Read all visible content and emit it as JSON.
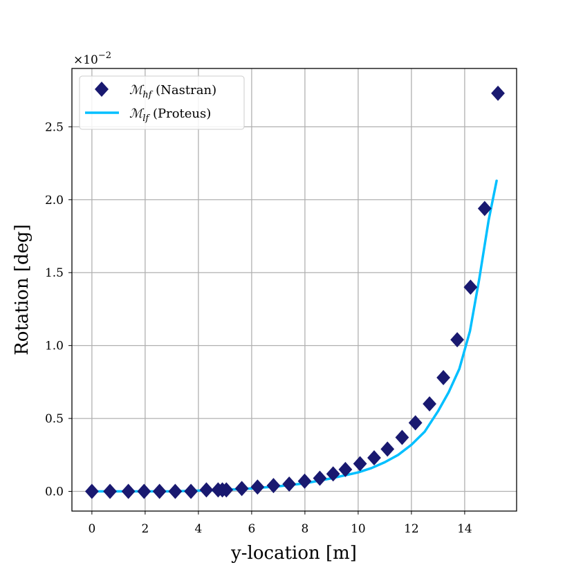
{
  "chart_data": {
    "type": "scatter",
    "xlabel": "y-location [m]",
    "ylabel": "Rotation [deg]",
    "y_scale_factor": {
      "base": "×10",
      "exponent": "−2"
    },
    "xlim": [
      -0.75,
      15.95
    ],
    "ylim": [
      -0.135,
      2.9
    ],
    "xticks": [
      0,
      2,
      4,
      6,
      8,
      10,
      12,
      14
    ],
    "xtick_labels": [
      "0",
      "2",
      "4",
      "6",
      "8",
      "10",
      "12",
      "14"
    ],
    "yticks": [
      0.0,
      0.5,
      1.0,
      1.5,
      2.0,
      2.5
    ],
    "ytick_labels": [
      "0.0",
      "0.5",
      "1.0",
      "1.5",
      "2.0",
      "2.5"
    ],
    "grid": true,
    "legend_position": "top-left",
    "colors": {
      "hf": "#191970",
      "lf": "#00bfff"
    },
    "series": [
      {
        "name": "ℳhf (Nastran)",
        "legend_main": "ℳ",
        "legend_sub": "hf",
        "legend_rest": " (Nastran)",
        "marker": "diamond",
        "x": [
          0.0,
          0.68,
          1.37,
          1.96,
          2.54,
          3.13,
          3.72,
          4.3,
          4.74,
          4.9,
          5.05,
          5.63,
          6.22,
          6.82,
          7.41,
          7.99,
          8.56,
          9.06,
          9.52,
          10.07,
          10.6,
          11.1,
          11.65,
          12.15,
          12.68,
          13.2,
          13.72,
          14.22,
          14.75,
          15.25
        ],
        "y": [
          0.0,
          0.0,
          0.0,
          0.0,
          0.0,
          0.0,
          0.0,
          0.01,
          0.01,
          0.01,
          0.01,
          0.02,
          0.03,
          0.04,
          0.05,
          0.07,
          0.09,
          0.12,
          0.15,
          0.19,
          0.23,
          0.29,
          0.37,
          0.47,
          0.6,
          0.78,
          1.04,
          1.4,
          1.94,
          2.73
        ]
      },
      {
        "name": "ℳlf (Proteus)",
        "legend_main": "ℳ",
        "legend_sub": "lf",
        "legend_rest": " (Proteus)",
        "marker": "line",
        "x": [
          0.0,
          1.0,
          2.0,
          3.0,
          4.0,
          5.0,
          6.0,
          7.0,
          8.0,
          9.0,
          10.0,
          10.5,
          11.0,
          11.5,
          12.0,
          12.5,
          13.0,
          13.4,
          13.8,
          14.2,
          14.55,
          14.9,
          15.2
        ],
        "y": [
          0.0,
          0.0,
          0.0,
          0.0,
          0.005,
          0.01,
          0.02,
          0.035,
          0.055,
          0.09,
          0.13,
          0.16,
          0.2,
          0.25,
          0.32,
          0.41,
          0.55,
          0.68,
          0.84,
          1.1,
          1.46,
          1.86,
          2.13
        ]
      }
    ]
  }
}
